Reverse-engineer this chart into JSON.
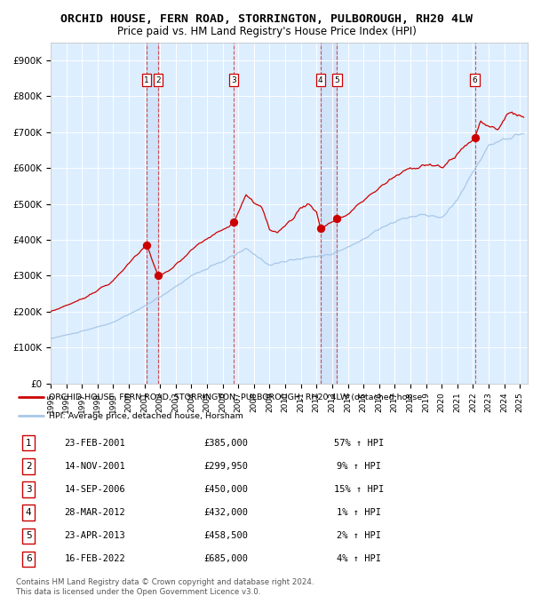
{
  "title": "ORCHID HOUSE, FERN ROAD, STORRINGTON, PULBOROUGH, RH20 4LW",
  "subtitle": "Price paid vs. HM Land Registry's House Price Index (HPI)",
  "title_fontsize": 9.5,
  "subtitle_fontsize": 8.5,
  "xlim_start": 1995.0,
  "xlim_end": 2025.5,
  "ylim": [
    0,
    950000
  ],
  "yticks": [
    0,
    100000,
    200000,
    300000,
    400000,
    500000,
    600000,
    700000,
    800000,
    900000
  ],
  "ytick_labels": [
    "£0",
    "£100K",
    "£200K",
    "£300K",
    "£400K",
    "£500K",
    "£600K",
    "£700K",
    "£800K",
    "£900K"
  ],
  "xtick_years": [
    1995,
    1996,
    1997,
    1998,
    1999,
    2000,
    2001,
    2002,
    2003,
    2004,
    2005,
    2006,
    2007,
    2008,
    2009,
    2010,
    2011,
    2012,
    2013,
    2014,
    2015,
    2016,
    2017,
    2018,
    2019,
    2020,
    2021,
    2022,
    2023,
    2024,
    2025
  ],
  "hpi_line_color": "#a8c8e8",
  "price_line_color": "#cc0000",
  "dot_color": "#cc0000",
  "vline_color": "#cc0000",
  "plot_bg_color": "#ddeeff",
  "grid_color": "#ffffff",
  "transactions": [
    {
      "num": 1,
      "date_yr": 2001.144,
      "price": 385000,
      "pct": "57%",
      "dir": "↑",
      "label": "23-FEB-2001"
    },
    {
      "num": 2,
      "date_yr": 2001.869,
      "price": 299950,
      "pct": "9%",
      "dir": "↑",
      "label": "14-NOV-2001"
    },
    {
      "num": 3,
      "date_yr": 2006.706,
      "price": 450000,
      "pct": "15%",
      "dir": "↑",
      "label": "14-SEP-2006"
    },
    {
      "num": 4,
      "date_yr": 2012.242,
      "price": 432000,
      "pct": "1%",
      "dir": "↑",
      "label": "28-MAR-2012"
    },
    {
      "num": 5,
      "date_yr": 2013.31,
      "price": 458500,
      "pct": "2%",
      "dir": "↑",
      "label": "23-APR-2013"
    },
    {
      "num": 6,
      "date_yr": 2022.124,
      "price": 685000,
      "pct": "4%",
      "dir": "↑",
      "label": "16-FEB-2022"
    }
  ],
  "legend_label_red": "ORCHID HOUSE, FERN ROAD, STORRINGTON, PULBOROUGH, RH20 4LW (detached house",
  "legend_label_blue": "HPI: Average price, detached house, Horsham",
  "footer1": "Contains HM Land Registry data © Crown copyright and database right 2024.",
  "footer2": "This data is licensed under the Open Government Licence v3.0."
}
